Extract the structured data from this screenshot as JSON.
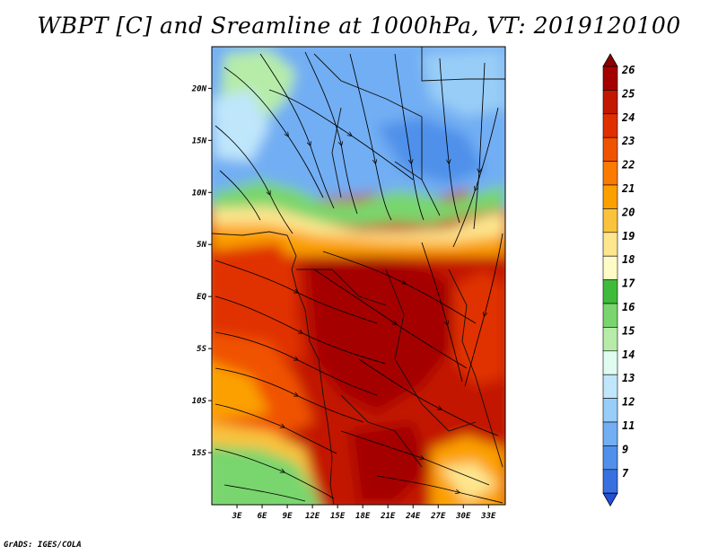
{
  "title": "WBPT [C] and Sreamline at 1000hPa, VT: 2019120100",
  "credit": "GrADS: IGES/COLA",
  "map": {
    "lon_range": [
      0,
      35
    ],
    "lat_range": [
      -20,
      24
    ],
    "lon_ticks": [
      "3E",
      "6E",
      "9E",
      "12E",
      "15E",
      "18E",
      "21E",
      "24E",
      "27E",
      "30E",
      "33E"
    ],
    "lon_values": [
      3,
      6,
      9,
      12,
      15,
      18,
      21,
      24,
      27,
      30,
      33
    ],
    "lat_ticks": [
      "20N",
      "15N",
      "10N",
      "5N",
      "EQ",
      "5S",
      "10S",
      "15S"
    ],
    "lat_values": [
      20,
      15,
      10,
      5,
      0,
      -5,
      -10,
      -15
    ]
  },
  "colorbar": {
    "labels": [
      "26",
      "25",
      "24",
      "23",
      "22",
      "21",
      "20",
      "19",
      "18",
      "17",
      "16",
      "15",
      "14",
      "13",
      "12",
      "11",
      "9",
      "7"
    ],
    "colors": [
      "#a50000",
      "#c21800",
      "#e03000",
      "#f05300",
      "#fb7a00",
      "#fca000",
      "#f9c33d",
      "#fde68e",
      "#fffbc6",
      "#3fbb3b",
      "#79d56d",
      "#b6eca8",
      "#e0fbef",
      "#bfe6fb",
      "#98cdf7",
      "#72aef3",
      "#5090ea",
      "#3870e0"
    ],
    "tip_colors": {
      "top": "#8b0000",
      "bottom": "#2050d8"
    }
  }
}
